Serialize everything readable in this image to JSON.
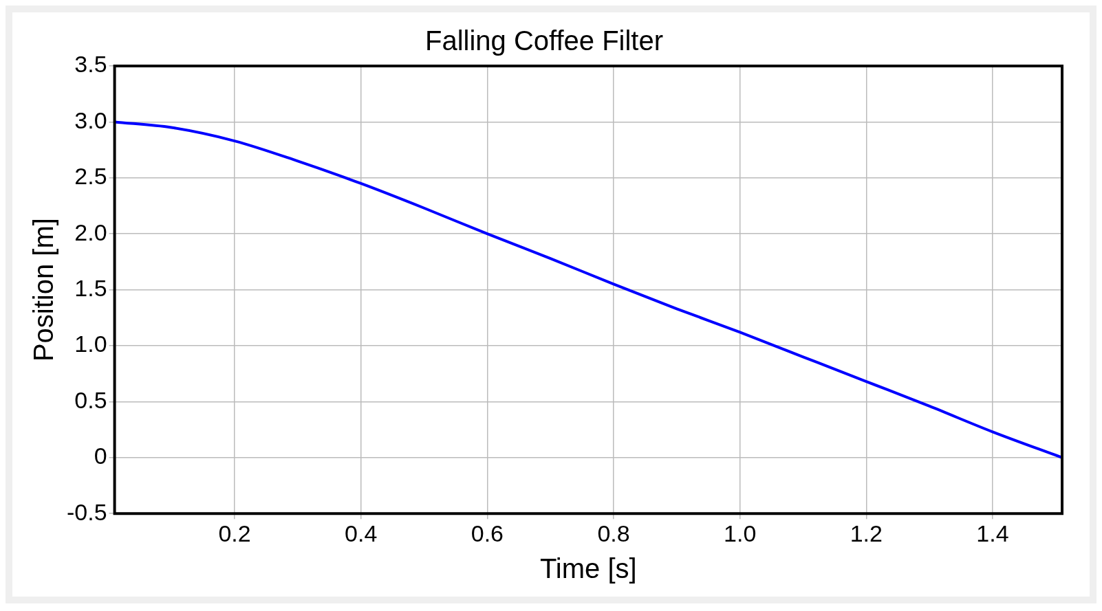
{
  "chart_data": {
    "type": "line",
    "title": "Falling Coffee Filter",
    "xlabel": "Time [s]",
    "ylabel": "Position [m]",
    "x": [
      0.01,
      0.1,
      0.2,
      0.3,
      0.4,
      0.5,
      0.6,
      0.7,
      0.8,
      0.9,
      1.0,
      1.1,
      1.2,
      1.3,
      1.4,
      1.51
    ],
    "series": [
      {
        "color": "#0000ff",
        "values": [
          3.0,
          2.95,
          2.83,
          2.65,
          2.45,
          2.23,
          2.0,
          1.78,
          1.55,
          1.33,
          1.12,
          0.9,
          0.68,
          0.46,
          0.23,
          0.0
        ]
      }
    ],
    "xlim": [
      0.01,
      1.51
    ],
    "xticks": [
      0.2,
      0.4,
      0.6,
      0.8,
      {
        "value": 1,
        "label": "1.0"
      },
      1.2,
      1.4
    ],
    "ylim": [
      -0.5,
      3.5
    ],
    "yticks": [
      -0.5,
      0,
      0.5,
      {
        "value": 1,
        "label": "1.0"
      },
      1.5,
      {
        "value": 2,
        "label": "2.0"
      },
      2.5,
      {
        "value": 3,
        "label": "3.0"
      },
      3.5
    ],
    "grid": true,
    "legend": false,
    "marker": "none",
    "line_style": "solid"
  }
}
